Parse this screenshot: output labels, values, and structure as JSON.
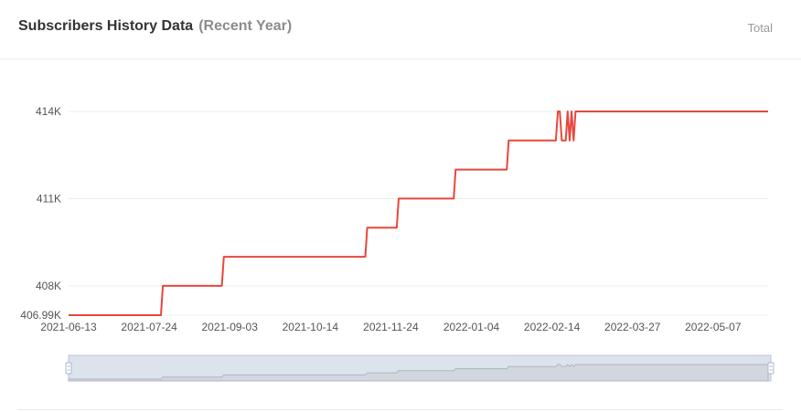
{
  "header": {
    "title": "Subscribers History Data",
    "subtitle": "(Recent Year)",
    "total_label": "Total"
  },
  "colors": {
    "line": "#e8473d",
    "grid": "#ececec",
    "axis_text": "#555555",
    "zoom_fill": "#dde3ed",
    "zoom_area": "#c8ccd2"
  },
  "chart_data": {
    "type": "line",
    "title": "Subscribers History Data",
    "xlabel": "",
    "ylabel": "",
    "x_range": [
      "2021-06-13",
      "2022-06-04"
    ],
    "y_range": [
      406990,
      414000
    ],
    "y_ticks": [
      {
        "value": 406990,
        "label": "406.99K"
      },
      {
        "value": 408000,
        "label": "408K"
      },
      {
        "value": 411000,
        "label": "411K"
      },
      {
        "value": 414000,
        "label": "414K"
      }
    ],
    "x_ticks": [
      "2021-06-13",
      "2021-07-24",
      "2021-09-03",
      "2021-10-14",
      "2021-11-24",
      "2022-01-04",
      "2022-02-14",
      "2022-03-27",
      "2022-05-07"
    ],
    "grid": true,
    "series": [
      {
        "points": [
          [
            "2021-06-13",
            406990
          ],
          [
            "2021-07-30",
            406990
          ],
          [
            "2021-07-31",
            408000
          ],
          [
            "2021-08-30",
            408000
          ],
          [
            "2021-08-31",
            409000
          ],
          [
            "2021-11-11",
            409000
          ],
          [
            "2021-11-12",
            410000
          ],
          [
            "2021-11-27",
            410000
          ],
          [
            "2021-11-28",
            411000
          ],
          [
            "2021-12-26",
            411000
          ],
          [
            "2021-12-27",
            412000
          ],
          [
            "2022-01-22",
            412000
          ],
          [
            "2022-01-23",
            413000
          ],
          [
            "2022-02-16",
            413000
          ],
          [
            "2022-02-17",
            414000
          ],
          [
            "2022-02-18",
            414000
          ],
          [
            "2022-02-19",
            413000
          ],
          [
            "2022-02-21",
            413000
          ],
          [
            "2022-02-22",
            414000
          ],
          [
            "2022-02-23",
            413000
          ],
          [
            "2022-02-24",
            414000
          ],
          [
            "2022-02-25",
            413000
          ],
          [
            "2022-02-26",
            414000
          ],
          [
            "2022-06-04",
            414000
          ]
        ]
      }
    ]
  }
}
